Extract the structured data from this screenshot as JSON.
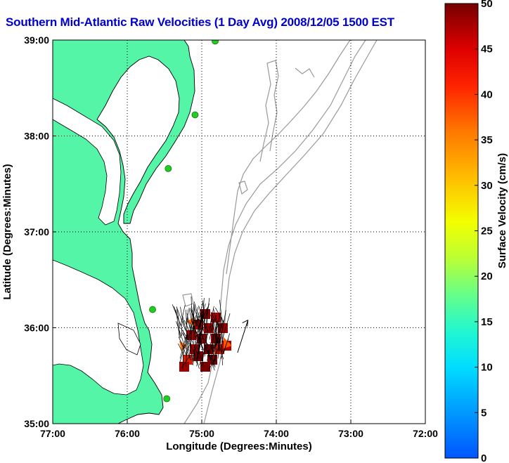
{
  "title": "Southern Mid-Atlantic Raw Velocities (1 Day Avg) 2008/12/05 1500 EST",
  "title_color": "#0000cc",
  "x_axis": {
    "label": "Longitude (Degrees:Minutes)",
    "ticks": [
      {
        "value": -77,
        "label": "77:00"
      },
      {
        "value": -76,
        "label": "76:00"
      },
      {
        "value": -75,
        "label": "75:00"
      },
      {
        "value": -74,
        "label": "74:00"
      },
      {
        "value": -73,
        "label": "73:00"
      },
      {
        "value": -72,
        "label": "72:00"
      }
    ],
    "range": [
      -77,
      -72
    ]
  },
  "y_axis": {
    "label": "Latitude (Degrees:Minutes)",
    "ticks": [
      {
        "value": 39,
        "label": "39:00"
      },
      {
        "value": 38,
        "label": "38:00"
      },
      {
        "value": 37,
        "label": "37:00"
      },
      {
        "value": 36,
        "label": "36:00"
      },
      {
        "value": 35,
        "label": "35:00"
      }
    ],
    "range": [
      35,
      39
    ]
  },
  "colorbar": {
    "label": "Surface Velocity (cm/s)",
    "min": 0,
    "max": 50,
    "ticks": [
      {
        "value": 50,
        "label": "50"
      },
      {
        "value": 45,
        "label": "45"
      },
      {
        "value": 40,
        "label": "40"
      },
      {
        "value": 35,
        "label": "35"
      },
      {
        "value": 30,
        "label": "30"
      },
      {
        "value": 25,
        "label": "25"
      },
      {
        "value": 20,
        "label": "20"
      },
      {
        "value": 15,
        "label": "15"
      },
      {
        "value": 10,
        "label": "10"
      },
      {
        "value": 5,
        "label": "5"
      },
      {
        "value": 0,
        "label": "0"
      }
    ]
  },
  "colors": {
    "land": "#55f5a8",
    "coast_line": "#000000",
    "bathymetry": "#999999",
    "station": "#22cc22"
  },
  "stations": [
    {
      "lon": -74.82,
      "lat": 38.99
    },
    {
      "lon": -75.09,
      "lat": 38.22
    },
    {
      "lon": -75.45,
      "lat": 37.66
    },
    {
      "lon": -75.66,
      "lat": 36.19
    },
    {
      "lon": -75.47,
      "lat": 35.26
    }
  ],
  "velocity_field": {
    "lon_range": [
      -75.3,
      -74.7
    ],
    "lat_range": [
      35.55,
      36.35
    ],
    "reference_arrow": {
      "lon": -74.52,
      "lat": 35.74,
      "dlon": 0.14,
      "dlat": 0.34
    }
  }
}
